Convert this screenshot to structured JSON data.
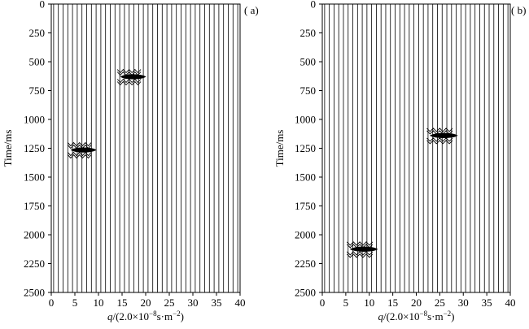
{
  "chart_data": [
    {
      "type": "wiggle",
      "panel_label": "( a)",
      "xlabel_var": "q",
      "xlabel_unit": "/(2.0×10",
      "xlabel_exp": "−8",
      "xlabel_unit2": "s·m",
      "xlabel_exp2": "−2",
      "xlabel_close": ")",
      "ylabel": "Time/ms",
      "xlim": [
        0,
        40
      ],
      "ylim": [
        0,
        2500
      ],
      "xticks": [
        "0",
        "5",
        "10",
        "15",
        "20",
        "25",
        "30",
        "35",
        "40"
      ],
      "yticks": [
        "0",
        "250",
        "500",
        "750",
        "1000",
        "1250",
        "1500",
        "1750",
        "2000",
        "2250",
        "2500"
      ],
      "trace_count": 40,
      "events": [
        {
          "q": 17,
          "time_ms": 630,
          "width_q": 6
        },
        {
          "q": 6.5,
          "time_ms": 1265,
          "width_q": 6
        }
      ]
    },
    {
      "type": "wiggle",
      "panel_label": "( b)",
      "xlabel_var": "q",
      "xlabel_unit": "/(2.0×10",
      "xlabel_exp": "−8",
      "xlabel_unit2": "s·m",
      "xlabel_exp2": "−2",
      "xlabel_close": ")",
      "ylabel": "Time/ms",
      "xlim": [
        0,
        40
      ],
      "ylim": [
        0,
        2500
      ],
      "xticks": [
        "0",
        "5",
        "10",
        "15",
        "20",
        "25",
        "30",
        "35",
        "40"
      ],
      "yticks": [
        "0",
        "250",
        "500",
        "750",
        "1000",
        "1250",
        "1500",
        "1750",
        "2000",
        "2250",
        "2500"
      ],
      "trace_count": 40,
      "events": [
        {
          "q": 25.5,
          "time_ms": 1140,
          "width_q": 6.5
        },
        {
          "q": 8.5,
          "time_ms": 2125,
          "width_q": 6.5
        }
      ]
    }
  ]
}
